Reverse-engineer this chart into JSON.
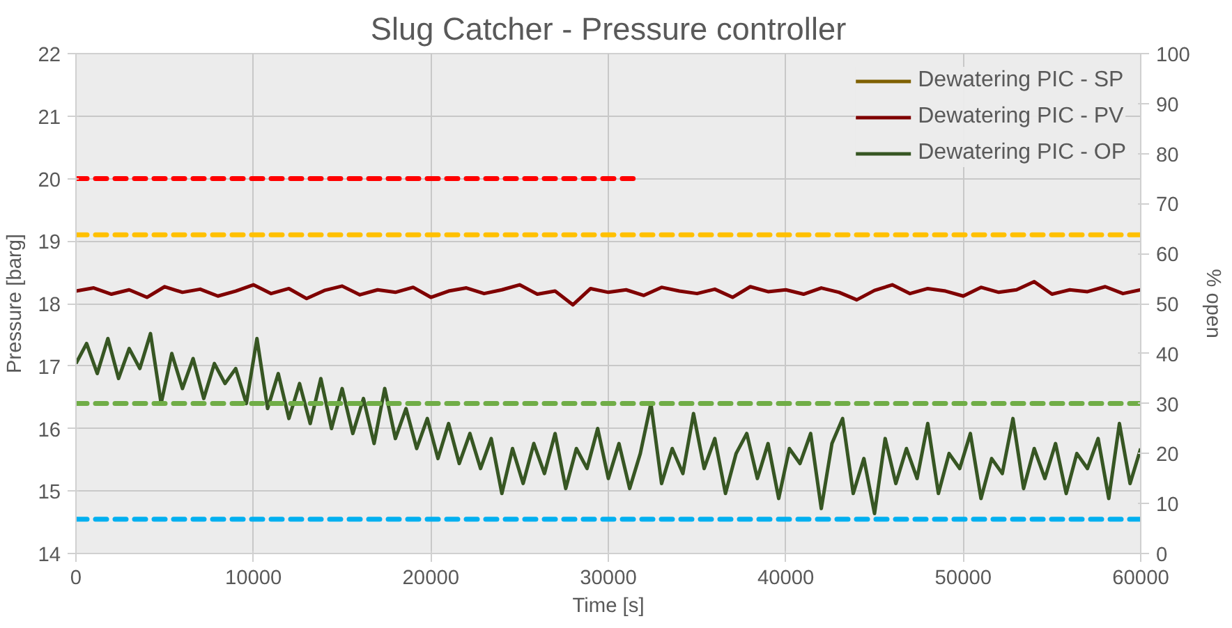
{
  "chart_data": {
    "type": "line",
    "title": "Slug Catcher - Pressure controller",
    "xlabel": "Time [s]",
    "ylabel": "Pressure [barg]",
    "y2label": "% open",
    "xlim": [
      0,
      60000
    ],
    "xticks": [
      0,
      10000,
      20000,
      30000,
      40000,
      50000,
      60000
    ],
    "ylim": [
      14,
      22
    ],
    "yticks": [
      14,
      15,
      16,
      17,
      18,
      19,
      20,
      21,
      22
    ],
    "y2lim": [
      0,
      100
    ],
    "y2ticks": [
      0,
      10,
      20,
      30,
      40,
      50,
      60,
      70,
      80,
      90,
      100
    ],
    "grid": true,
    "legend": "top right",
    "line_style": "solid",
    "marker": "none",
    "series": [
      {
        "name": "Dewatering PIC - SP",
        "color": "#7f6000"
      },
      {
        "name": "Dewatering PIC - PV",
        "color": "#7f0000",
        "x": [
          0,
          1000,
          2000,
          3000,
          4000,
          5000,
          6000,
          7000,
          8000,
          9000,
          10000,
          11000,
          12000,
          13000,
          14000,
          15000,
          16000,
          17000,
          18000,
          19000,
          20000,
          21000,
          22000,
          23000,
          24000,
          25000,
          26000,
          27000,
          28000,
          29000,
          30000,
          31000,
          32000,
          33000,
          34000,
          35000,
          36000,
          37000,
          38000,
          39000,
          40000,
          41000,
          42000,
          43000,
          44000,
          45000,
          46000,
          47000,
          48000,
          49000,
          50000,
          51000,
          52000,
          53000,
          54000,
          55000,
          56000,
          57000,
          58000,
          59000,
          60000
        ],
        "values": [
          18.2,
          18.25,
          18.15,
          18.22,
          18.1,
          18.27,
          18.18,
          18.23,
          18.12,
          18.2,
          18.3,
          18.16,
          18.24,
          18.08,
          18.21,
          18.28,
          18.14,
          18.22,
          18.18,
          18.26,
          18.1,
          18.2,
          18.25,
          18.16,
          18.22,
          18.3,
          18.15,
          18.2,
          17.98,
          18.24,
          18.18,
          18.22,
          18.13,
          18.26,
          18.2,
          18.16,
          18.23,
          18.1,
          18.27,
          18.19,
          18.22,
          18.15,
          18.25,
          18.18,
          18.06,
          18.21,
          18.3,
          18.16,
          18.24,
          18.2,
          18.12,
          18.26,
          18.18,
          18.22,
          18.35,
          18.15,
          18.22,
          18.19,
          18.27,
          18.16,
          18.22
        ]
      },
      {
        "name": "Dewatering PIC - OP",
        "color": "#375623",
        "axis": "y2",
        "x": [
          0,
          600,
          1200,
          1800,
          2400,
          3000,
          3600,
          4200,
          4800,
          5400,
          6000,
          6600,
          7200,
          7800,
          8400,
          9000,
          9600,
          10200,
          10800,
          11400,
          12000,
          12600,
          13200,
          13800,
          14400,
          15000,
          15600,
          16200,
          16800,
          17400,
          18000,
          18600,
          19200,
          19800,
          20400,
          21000,
          21600,
          22200,
          22800,
          23400,
          24000,
          24600,
          25200,
          25800,
          26400,
          27000,
          27600,
          28200,
          28800,
          29400,
          30000,
          30600,
          31200,
          31800,
          32400,
          33000,
          33600,
          34200,
          34800,
          35400,
          36000,
          36600,
          37200,
          37800,
          38400,
          39000,
          39600,
          40200,
          40800,
          41400,
          42000,
          42600,
          43200,
          43800,
          44400,
          45000,
          45600,
          46200,
          46800,
          47400,
          48000,
          48600,
          49200,
          49800,
          50400,
          51000,
          51600,
          52200,
          52800,
          53400,
          54000,
          54600,
          55200,
          55800,
          56400,
          57000,
          57600,
          58200,
          58800,
          59400,
          60000
        ],
        "values": [
          38,
          42,
          36,
          43,
          35,
          41,
          37,
          44,
          30,
          40,
          33,
          39,
          31,
          38,
          34,
          37,
          30,
          43,
          29,
          36,
          27,
          34,
          26,
          35,
          25,
          33,
          24,
          31,
          22,
          33,
          23,
          29,
          21,
          27,
          19,
          26,
          18,
          24,
          17,
          23,
          12,
          21,
          14,
          22,
          16,
          24,
          13,
          21,
          17,
          25,
          15,
          22,
          13,
          20,
          30,
          14,
          21,
          16,
          28,
          17,
          23,
          12,
          20,
          24,
          15,
          22,
          11,
          21,
          18,
          24,
          9,
          22,
          27,
          12,
          19,
          8,
          23,
          14,
          21,
          15,
          26,
          12,
          20,
          17,
          24,
          11,
          19,
          16,
          27,
          13,
          21,
          15,
          22,
          12,
          20,
          17,
          23,
          11,
          26,
          14,
          21
        ]
      },
      {
        "color": "#ff0000",
        "line_style": "dashed",
        "x": [
          0,
          31400
        ],
        "values": [
          20,
          20
        ]
      },
      {
        "color": "#ffc000",
        "line_style": "dashed",
        "x": [
          0,
          60000
        ],
        "values": [
          19.1,
          19.1
        ]
      },
      {
        "color": "#70ad47",
        "line_style": "dashed",
        "axis": "y2",
        "x": [
          0,
          60000
        ],
        "values": [
          30,
          30
        ]
      },
      {
        "color": "#00b0f0",
        "line_style": "dashed",
        "x": [
          0,
          60000
        ],
        "values": [
          14.55,
          14.55
        ]
      }
    ]
  }
}
